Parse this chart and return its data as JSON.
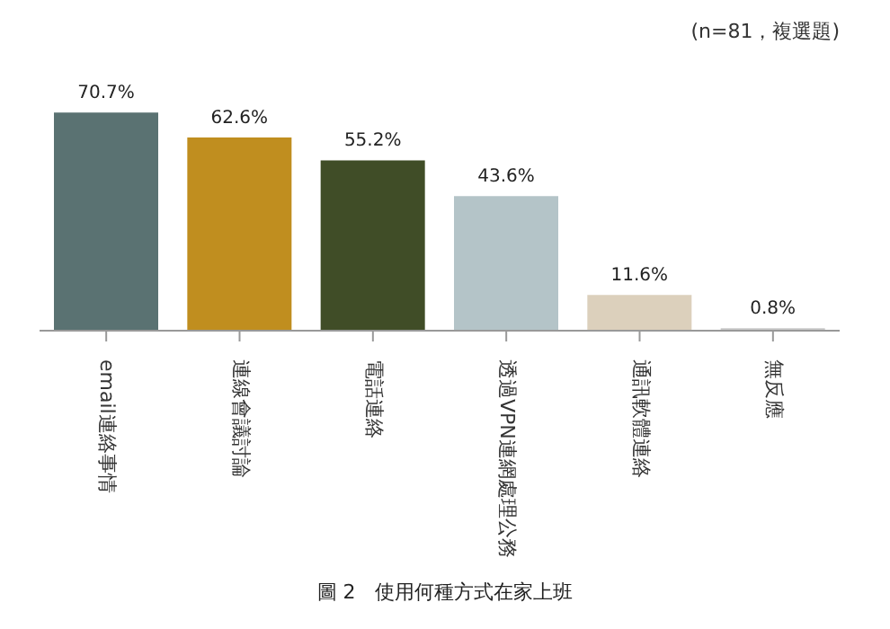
{
  "chart_data": {
    "type": "bar",
    "title": "圖 2　使用何種方式在家上班",
    "subtitle": "(n=81，複選題)",
    "categories": [
      "email連絡事情",
      "連線會議討論",
      "電話連絡",
      "透過VPN連網處理公務",
      "通訊軟體連絡",
      "無反應"
    ],
    "values": [
      70.7,
      62.6,
      55.2,
      43.6,
      11.6,
      0.8
    ],
    "colors": [
      "#5a7272",
      "#c08e1f",
      "#404d27",
      "#b4c4c8",
      "#dcd0bc",
      "#c8c8c8"
    ],
    "value_labels": [
      "70.7%",
      "62.6%",
      "55.2%",
      "43.6%",
      "11.6%",
      "0.8%"
    ],
    "grid": false,
    "legend": false
  }
}
